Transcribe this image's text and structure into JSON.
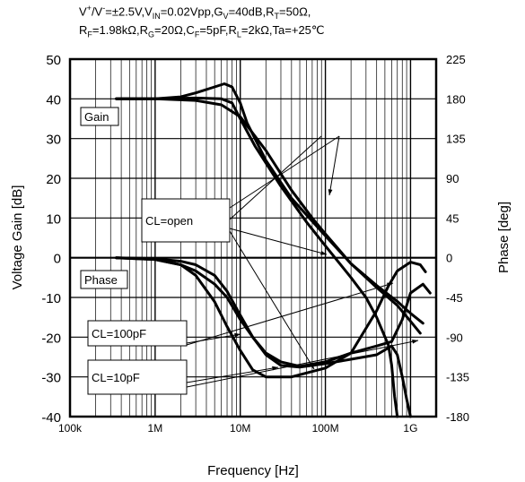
{
  "conditions": {
    "line1": [
      {
        "t": "V"
      },
      {
        "t": "+",
        "sup": true
      },
      {
        "t": "/V"
      },
      {
        "t": "-",
        "sup": true
      },
      {
        "t": "=±2.5V,V"
      },
      {
        "t": "IN",
        "sub": true
      },
      {
        "t": "=0.02Vpp,G"
      },
      {
        "t": "V",
        "sub": true
      },
      {
        "t": "=40dB,R"
      },
      {
        "t": "T",
        "sub": true
      },
      {
        "t": "=50Ω,"
      }
    ],
    "line2": [
      {
        "t": "R"
      },
      {
        "t": "F",
        "sub": true
      },
      {
        "t": "=1.98kΩ,R"
      },
      {
        "t": "G",
        "sub": true
      },
      {
        "t": "=20Ω,C"
      },
      {
        "t": "F",
        "sub": true
      },
      {
        "t": "=5pF,R"
      },
      {
        "t": "L",
        "sub": true
      },
      {
        "t": "=2kΩ,Ta=+25℃"
      }
    ]
  },
  "chart_data": {
    "type": "line",
    "xlabel": "Frequency [Hz]",
    "ylabel": "Voltage Gain [dB]",
    "y2label": "Phase [deg]",
    "xscale": "log",
    "xlim": [
      100000,
      2000000000
    ],
    "ylim": [
      -40,
      50
    ],
    "y2lim": [
      -180,
      225
    ],
    "xticks": [
      {
        "value": 100000,
        "label": "100k"
      },
      {
        "value": 1000000,
        "label": "1M"
      },
      {
        "value": 10000000,
        "label": "10M"
      },
      {
        "value": 100000000,
        "label": "100M"
      },
      {
        "value": 1000000000,
        "label": "1G"
      }
    ],
    "yticks": [
      50,
      40,
      30,
      20,
      10,
      0,
      -10,
      -20,
      -30,
      -40
    ],
    "y2ticks": [
      225,
      180,
      135,
      90,
      45,
      0,
      -45,
      -90,
      -135,
      -180
    ],
    "grid": true,
    "labels": {
      "gain": "Gain",
      "phase": "Phase",
      "open": "CL=open",
      "c100": "CL=100pF",
      "c10": "CL=10pF"
    },
    "series": [
      {
        "name": "CL=open",
        "quantity": "gain",
        "points": [
          [
            350000,
            40
          ],
          [
            1000000,
            40
          ],
          [
            3000000,
            39.6
          ],
          [
            6000000,
            38.5
          ],
          [
            10000000,
            35.5
          ],
          [
            20000000,
            27
          ],
          [
            40000000,
            17
          ],
          [
            70000000,
            10
          ],
          [
            100000000,
            6
          ],
          [
            200000000,
            -1.5
          ],
          [
            400000000,
            -7.5
          ],
          [
            700000000,
            -12
          ],
          [
            1000000000,
            -16
          ],
          [
            1300000000,
            -19
          ]
        ]
      },
      {
        "name": "CL=10pF",
        "quantity": "gain",
        "points": [
          [
            350000,
            40
          ],
          [
            1000000,
            40
          ],
          [
            2000000,
            40.5
          ],
          [
            3000000,
            41.5
          ],
          [
            5000000,
            43
          ],
          [
            6500000,
            43.8
          ],
          [
            8000000,
            43
          ],
          [
            10000000,
            39
          ],
          [
            12000000,
            34
          ],
          [
            20000000,
            24.5
          ],
          [
            40000000,
            15
          ],
          [
            100000000,
            5.5
          ],
          [
            200000000,
            -1.5
          ],
          [
            400000000,
            -7
          ],
          [
            700000000,
            -11
          ],
          [
            1000000000,
            -14
          ],
          [
            1400000000,
            -16.5
          ]
        ]
      },
      {
        "name": "CL=100pF",
        "quantity": "gain",
        "points": [
          [
            350000,
            40
          ],
          [
            1000000,
            40
          ],
          [
            3000000,
            40.2
          ],
          [
            6000000,
            40
          ],
          [
            8000000,
            39
          ],
          [
            10000000,
            35
          ],
          [
            15000000,
            28
          ],
          [
            30000000,
            18
          ],
          [
            60000000,
            9
          ],
          [
            100000000,
            3
          ],
          [
            200000000,
            -5
          ],
          [
            300000000,
            -10
          ],
          [
            400000000,
            -15
          ],
          [
            550000000,
            -22
          ],
          [
            600000000,
            -27
          ],
          [
            650000000,
            -35
          ],
          [
            700000000,
            -40
          ]
        ]
      },
      {
        "name": "CL=open",
        "quantity": "phase",
        "points": [
          [
            350000,
            0
          ],
          [
            1000000,
            -2
          ],
          [
            2000000,
            -8
          ],
          [
            3000000,
            -15
          ],
          [
            5000000,
            -30
          ],
          [
            7000000,
            -45
          ],
          [
            10000000,
            -70
          ],
          [
            14000000,
            -90
          ],
          [
            20000000,
            -108
          ],
          [
            30000000,
            -118
          ],
          [
            50000000,
            -123
          ],
          [
            100000000,
            -118
          ],
          [
            200000000,
            -108
          ],
          [
            400000000,
            -100
          ],
          [
            600000000,
            -95
          ],
          [
            800000000,
            -70
          ],
          [
            1000000000,
            -40
          ],
          [
            1400000000,
            -30
          ],
          [
            1700000000,
            -40
          ]
        ]
      },
      {
        "name": "CL=10pF",
        "quantity": "phase",
        "points": [
          [
            350000,
            0
          ],
          [
            1000000,
            -1
          ],
          [
            2000000,
            -4
          ],
          [
            3000000,
            -8
          ],
          [
            5000000,
            -20
          ],
          [
            7000000,
            -38
          ],
          [
            10000000,
            -65
          ],
          [
            14000000,
            -90
          ],
          [
            20000000,
            -110
          ],
          [
            30000000,
            -122
          ],
          [
            50000000,
            -124
          ],
          [
            100000000,
            -120
          ],
          [
            200000000,
            -115
          ],
          [
            400000000,
            -110
          ],
          [
            600000000,
            -100
          ],
          [
            700000000,
            -110
          ],
          [
            800000000,
            -135
          ],
          [
            900000000,
            -160
          ],
          [
            1000000000,
            -180
          ]
        ]
      },
      {
        "name": "CL=100pF",
        "quantity": "phase",
        "points": [
          [
            350000,
            0
          ],
          [
            1000000,
            -2
          ],
          [
            2000000,
            -8
          ],
          [
            3000000,
            -20
          ],
          [
            5000000,
            -50
          ],
          [
            7000000,
            -78
          ],
          [
            10000000,
            -105
          ],
          [
            14000000,
            -127
          ],
          [
            20000000,
            -135
          ],
          [
            40000000,
            -135
          ],
          [
            100000000,
            -125
          ],
          [
            200000000,
            -108
          ],
          [
            300000000,
            -80
          ],
          [
            400000000,
            -60
          ],
          [
            550000000,
            -32
          ],
          [
            700000000,
            -15
          ],
          [
            1000000000,
            -5
          ],
          [
            1300000000,
            -8
          ],
          [
            1500000000,
            -16
          ]
        ]
      }
    ]
  }
}
